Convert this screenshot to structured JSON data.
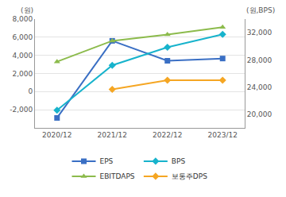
{
  "chart_data": {
    "type": "line",
    "y_label": "(원)",
    "y2_label": "(원,BPS)",
    "categories": [
      "2020/12",
      "2021/12",
      "2022/12",
      "2023/12"
    ],
    "series": [
      {
        "name": "EPS",
        "color": "#3a6fc4",
        "marker": "square",
        "values": [
          -2900,
          5600,
          3400,
          3650
        ]
      },
      {
        "name": "BPS",
        "color": "#17b3cc",
        "marker": "diamond",
        "axis": "y2",
        "values": [
          20600,
          27200,
          29850,
          31750
        ]
      },
      {
        "name": "EBITDAPS",
        "color": "#8cbb4c",
        "marker": "triangle-up",
        "values": [
          3300,
          5600,
          6300,
          7100
        ]
      },
      {
        "name": "보통주DPS",
        "color": "#f5a623",
        "marker": "diamond",
        "values": [
          null,
          250,
          1250,
          1250
        ]
      }
    ],
    "ylim": [
      -4000,
      8000
    ],
    "yticks": [
      {
        "value": -2000,
        "label": "-2,000"
      },
      0,
      {
        "value": 2000,
        "label": "2,000"
      },
      {
        "value": 4000,
        "label": "4,000"
      },
      {
        "value": 6000,
        "label": "6,000"
      },
      {
        "value": 8000,
        "label": "8,000"
      }
    ],
    "y2lim": [
      18000,
      34000
    ],
    "y2ticks": [
      {
        "value": 20000,
        "label": "20,000"
      },
      {
        "value": 24000,
        "label": "24,000"
      },
      {
        "value": 28000,
        "label": "28,000"
      },
      {
        "value": 32000,
        "label": "32,000"
      }
    ],
    "grid": true,
    "legend": "bottom"
  }
}
